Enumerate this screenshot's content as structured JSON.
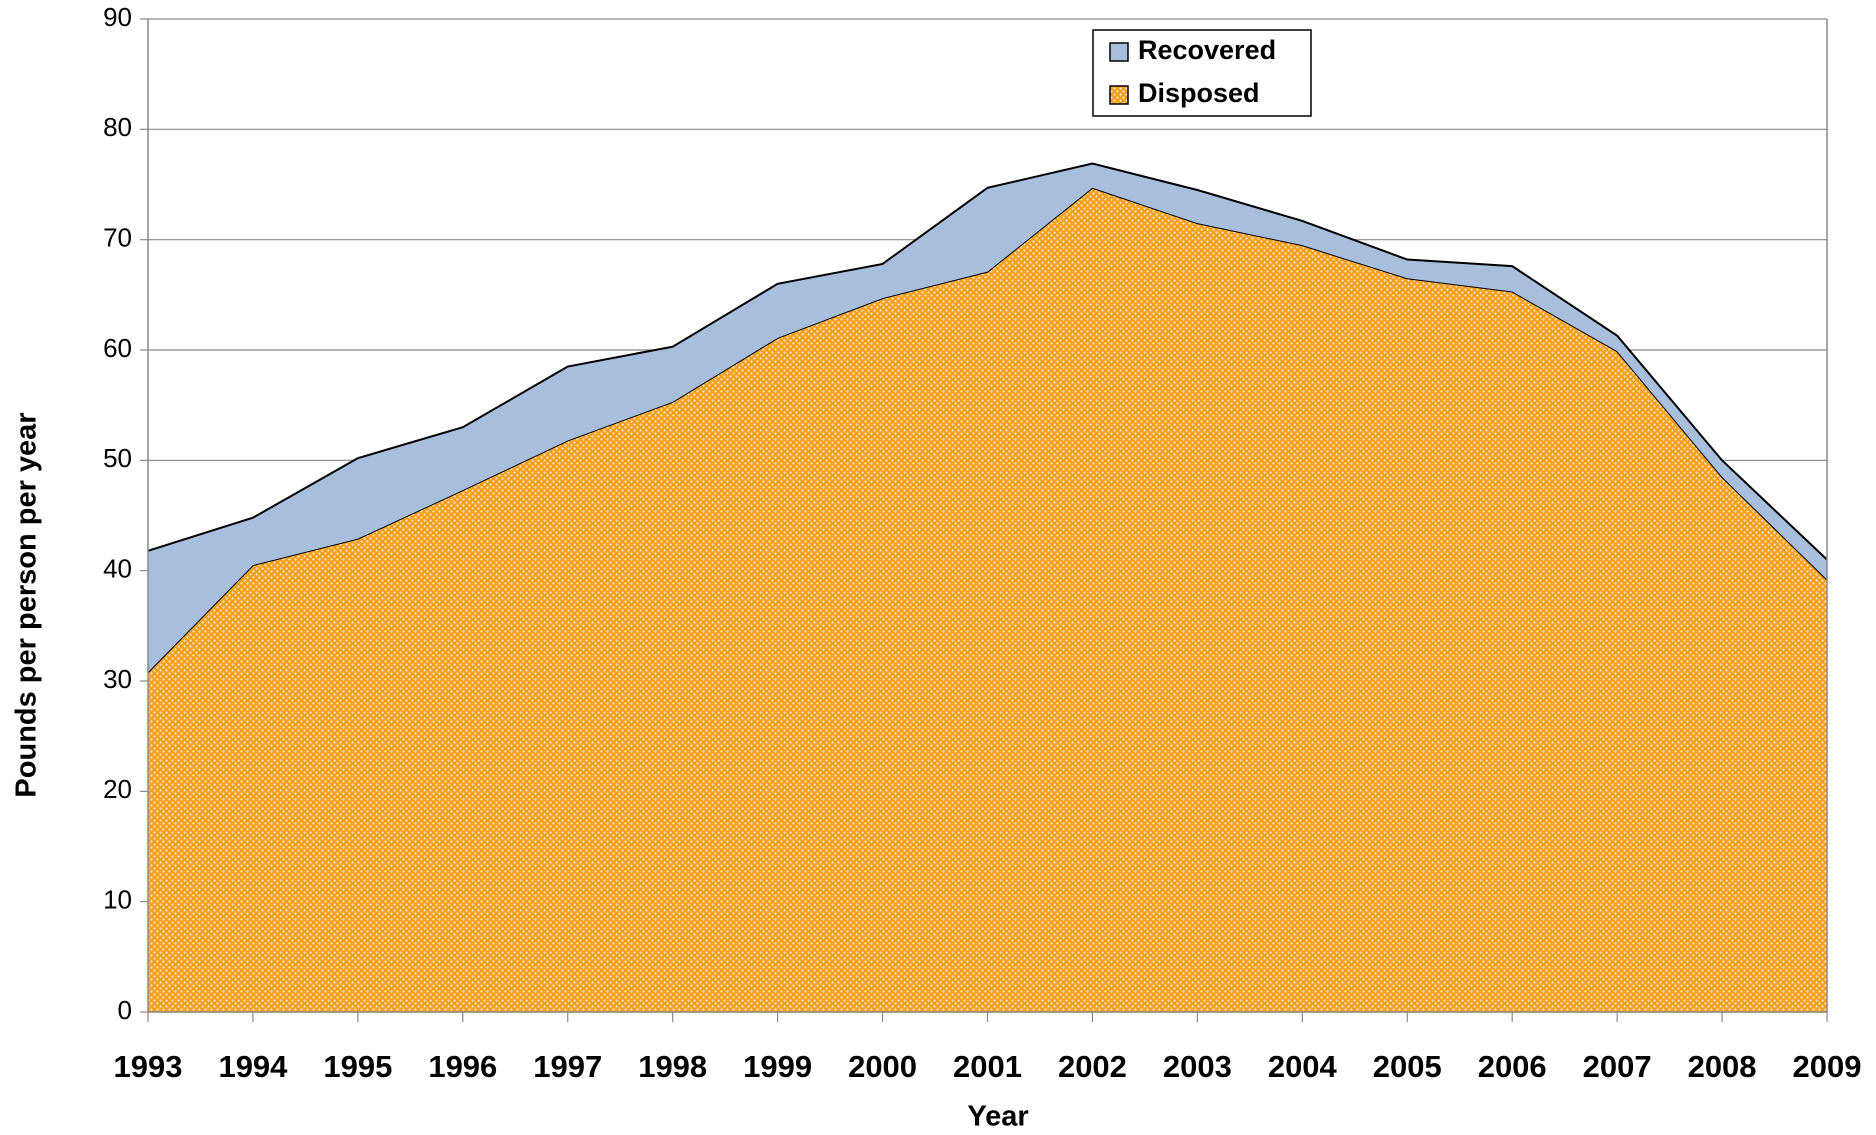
{
  "chart_data": {
    "type": "stacked_area",
    "x_label": "Year",
    "y_label": "Pounds per person per year",
    "categories": [
      "1993",
      "1994",
      "1995",
      "1996",
      "1997",
      "1998",
      "1999",
      "2000",
      "2001",
      "2002",
      "2003",
      "2004",
      "2005",
      "2006",
      "2007",
      "2008",
      "2009"
    ],
    "series": [
      {
        "name": "Disposed",
        "color": "#f5a01e",
        "pattern": "dots",
        "values": [
          30.8,
          40.5,
          42.9,
          47.3,
          51.8,
          55.3,
          61.1,
          64.7,
          67.1,
          74.7,
          71.5,
          69.5,
          66.5,
          65.3,
          59.9,
          48.5,
          39.2
        ]
      },
      {
        "name": "Recovered",
        "color": "#a7bfdd",
        "values": [
          11.0,
          4.3,
          7.3,
          5.7,
          6.7,
          5.0,
          4.9,
          3.1,
          7.6,
          2.2,
          3.0,
          2.2,
          1.7,
          2.3,
          1.4,
          1.5,
          1.8
        ]
      }
    ],
    "ylim": [
      0,
      90
    ],
    "yticks": [
      0,
      10,
      20,
      30,
      40,
      50,
      60,
      70,
      80,
      90
    ],
    "grid": true,
    "legend": "top-center"
  }
}
